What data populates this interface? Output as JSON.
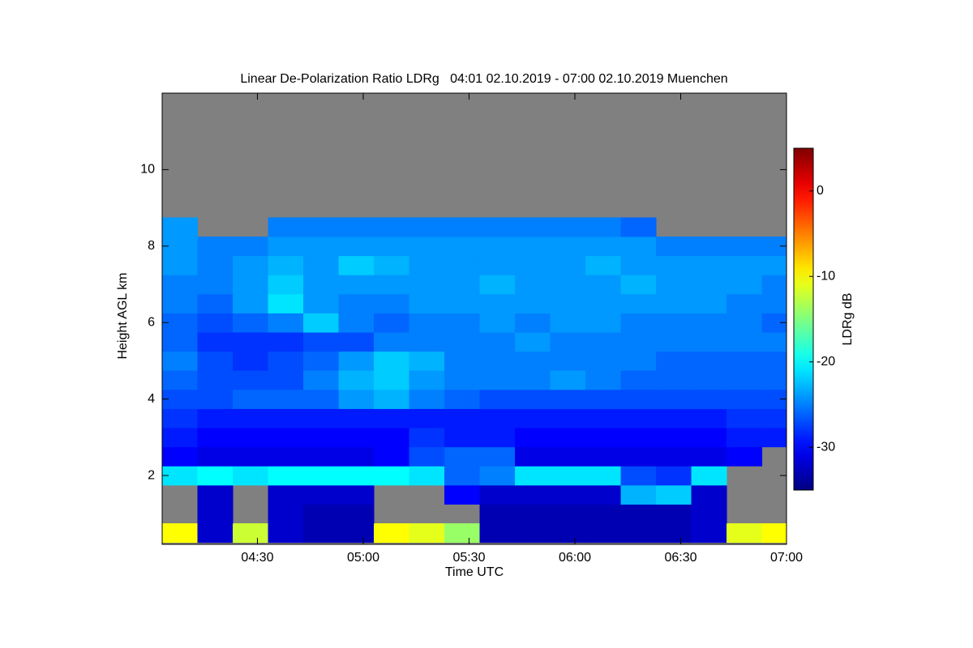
{
  "chart_data": {
    "type": "heatmap",
    "title": "Linear De-Polarization Ratio LDRg   04:01 02.10.2019 - 07:00 02.10.2019 Muenchen",
    "x_label": "Time UTC",
    "y_label": "Height AGL km",
    "colorbar_label": "LDRg dB",
    "colormap": "jet",
    "missing_color": "#808080",
    "x": [
      248,
      258,
      268,
      278,
      288,
      298,
      308,
      318,
      328,
      338,
      348,
      358,
      368,
      378,
      388,
      398,
      408,
      418
    ],
    "y": [
      0.5,
      1.0,
      1.5,
      2.0,
      2.5,
      3.0,
      3.5,
      4.0,
      4.5,
      5.0,
      5.5,
      6.0,
      6.5,
      7.0,
      7.5,
      8.0,
      8.5
    ],
    "z": [
      [
        -10,
        -32,
        -12,
        -32,
        -33,
        -33,
        -10,
        -11,
        -14,
        -33,
        -33,
        -33,
        -33,
        -33,
        -33,
        -32,
        -11,
        -10
      ],
      [
        null,
        -32,
        null,
        -32,
        -33,
        -33,
        null,
        null,
        null,
        -33,
        -33,
        -33,
        -33,
        -33,
        -33,
        -32,
        null,
        null
      ],
      [
        null,
        -32,
        null,
        -32,
        -32,
        -32,
        null,
        null,
        -30,
        -32,
        -32,
        -32,
        -32,
        -23,
        -22,
        -32,
        null,
        null
      ],
      [
        -21,
        -20,
        -21,
        -20,
        -20,
        -20,
        -20,
        -21,
        -26,
        -25,
        -21,
        -21,
        -21,
        -27,
        -28,
        -21,
        null,
        null
      ],
      [
        -30,
        -31,
        -31,
        -31,
        -31,
        -31,
        -30,
        -27,
        -26,
        -26,
        -31,
        -31,
        -31,
        -31,
        -31,
        -31,
        -30,
        null
      ],
      [
        -29,
        -30,
        -30,
        -30,
        -30,
        -30,
        -30,
        -28,
        -29,
        -29,
        -30,
        -30,
        -30,
        -30,
        -30,
        -30,
        -29,
        -29
      ],
      [
        -28,
        -29,
        -29,
        -29,
        -29,
        -29,
        -29,
        -29,
        -29,
        -29,
        -29,
        -29,
        -29,
        -29,
        -29,
        -29,
        -28,
        -28
      ],
      [
        -27,
        -27,
        -26,
        -26,
        -26,
        -24,
        -23,
        -25,
        -26,
        -27,
        -27,
        -27,
        -27,
        -27,
        -27,
        -27,
        -27,
        -27
      ],
      [
        -26,
        -27,
        -27,
        -27,
        -25,
        -23,
        -22,
        -24,
        -25,
        -25,
        -25,
        -24,
        -25,
        -26,
        -26,
        -26,
        -26,
        -26
      ],
      [
        -25,
        -27,
        -28,
        -27,
        -26,
        -24,
        -22,
        -23,
        -25,
        -25,
        -25,
        -25,
        -25,
        -25,
        -26,
        -26,
        -26,
        -26
      ],
      [
        -26,
        -28,
        -28,
        -28,
        -27,
        -27,
        -25,
        -25,
        -25,
        -25,
        -24,
        -25,
        -25,
        -25,
        -25,
        -25,
        -25,
        -25
      ],
      [
        -26,
        -27,
        -26,
        -25,
        -22,
        -25,
        -26,
        -25,
        -25,
        -24,
        -25,
        -24,
        -24,
        -25,
        -25,
        -25,
        -25,
        -26
      ],
      [
        -25,
        -26,
        -24,
        -21,
        -24,
        -25,
        -25,
        -24,
        -24,
        -24,
        -24,
        -24,
        -24,
        -24,
        -24,
        -24,
        -25,
        -25
      ],
      [
        -25,
        -25,
        -24,
        -22,
        -24,
        -24,
        -24,
        -24,
        -24,
        -23,
        -24,
        -24,
        -24,
        -23,
        -24,
        -24,
        -24,
        -25
      ],
      [
        -24,
        -25,
        -24,
        -23,
        -24,
        -22,
        -23,
        -24,
        -24,
        -24,
        -24,
        -24,
        -23,
        -24,
        -24,
        -24,
        -24,
        -24
      ],
      [
        -24,
        -25,
        -25,
        -24,
        -24,
        -24,
        -24,
        -24,
        -24,
        -24,
        -24,
        -24,
        -24,
        -24,
        -25,
        -25,
        -25,
        -25
      ],
      [
        -24,
        null,
        null,
        -25,
        -25,
        -25,
        -25,
        -25,
        -25,
        -25,
        -25,
        -25,
        -25,
        -26,
        null,
        null,
        null,
        null
      ]
    ],
    "xlim": [
      243,
      420
    ],
    "xticks": [
      {
        "value": 270,
        "label": "04:30"
      },
      {
        "value": 300,
        "label": "05:00"
      },
      {
        "value": 330,
        "label": "05:30"
      },
      {
        "value": 360,
        "label": "06:00"
      },
      {
        "value": 390,
        "label": "06:30"
      },
      {
        "value": 420,
        "label": "07:00"
      }
    ],
    "ylim": [
      0.2,
      12
    ],
    "yticks": [
      2,
      4,
      6,
      8,
      10
    ],
    "clim": [
      -35,
      5
    ],
    "cticks": [
      0,
      -10,
      -20,
      -30
    ]
  }
}
